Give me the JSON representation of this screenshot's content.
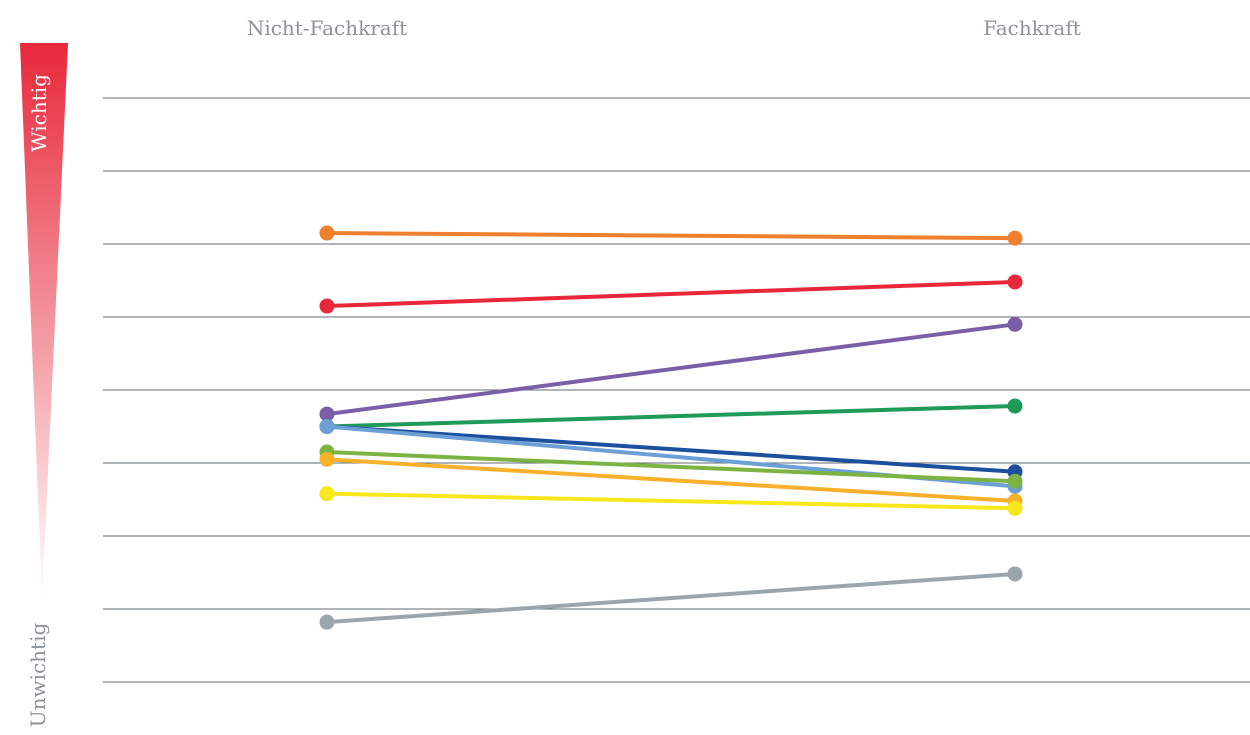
{
  "chart_data": {
    "type": "line",
    "title": "",
    "xlabel": "",
    "ylabel": "",
    "categories": [
      "Nicht-Fachkraft",
      "Fachkraft"
    ],
    "scale_labels": {
      "top": "Wichtig",
      "bottom": "Unwichtig"
    },
    "ylim": [
      0,
      8
    ],
    "grid": true,
    "legend": "none",
    "series": [
      {
        "color": "#f07f2f",
        "values": [
          6.15,
          6.08
        ]
      },
      {
        "color": "#e8283a",
        "values": [
          5.15,
          5.48
        ]
      },
      {
        "color": "#7b5ea8",
        "values": [
          3.67,
          4.9
        ]
      },
      {
        "color": "#1f9a57",
        "values": [
          3.5,
          3.78
        ]
      },
      {
        "color": "#1c4f9c",
        "values": [
          3.5,
          2.88
        ]
      },
      {
        "color": "#6b9fd6",
        "values": [
          3.5,
          2.68
        ]
      },
      {
        "color": "#7cb342",
        "values": [
          3.15,
          2.75
        ]
      },
      {
        "color": "#f9b02b",
        "values": [
          3.05,
          2.48
        ]
      },
      {
        "color": "#f7e71c",
        "values": [
          2.58,
          2.38
        ]
      },
      {
        "color": "#9aa5ac",
        "values": [
          0.82,
          1.48
        ]
      }
    ]
  }
}
